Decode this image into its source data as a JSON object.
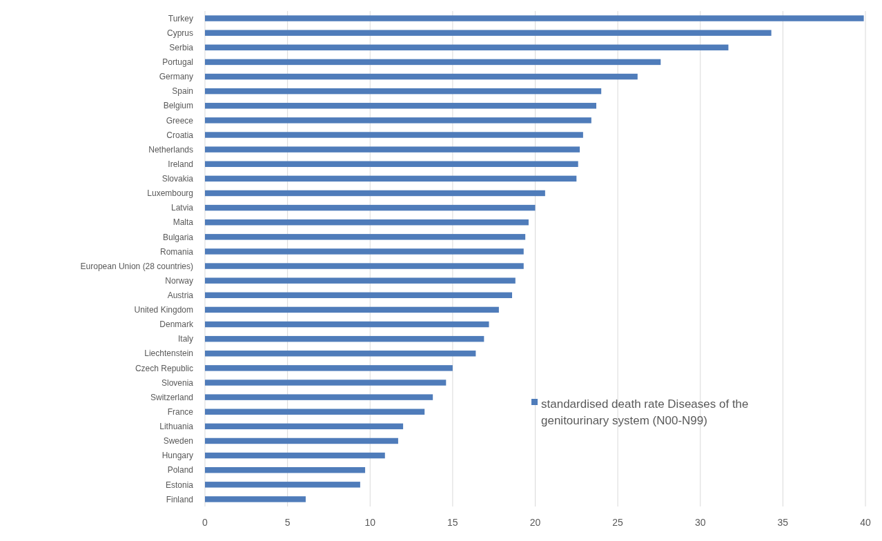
{
  "chart_data": {
    "type": "bar",
    "orientation": "horizontal",
    "categories": [
      "Turkey",
      "Cyprus",
      "Serbia",
      "Portugal",
      "Germany",
      "Spain",
      "Belgium",
      "Greece",
      "Croatia",
      "Netherlands",
      "Ireland",
      "Slovakia",
      "Luxembourg",
      "Latvia",
      "Malta",
      "Bulgaria",
      "Romania",
      "European Union (28 countries)",
      "Norway",
      "Austria",
      "United Kingdom",
      "Denmark",
      "Italy",
      "Liechtenstein",
      "Czech Republic",
      "Slovenia",
      "Switzerland",
      "France",
      "Lithuania",
      "Sweden",
      "Hungary",
      "Poland",
      "Estonia",
      "Finland"
    ],
    "series": [
      {
        "name": "standardised death rate Diseases of the genitourinary system (N00-N99)",
        "color": "#4f7cba",
        "values": [
          39.9,
          34.3,
          31.7,
          27.6,
          26.2,
          24.0,
          23.7,
          23.4,
          22.9,
          22.7,
          22.6,
          22.5,
          20.6,
          20.0,
          19.6,
          19.4,
          19.3,
          19.3,
          18.8,
          18.6,
          17.8,
          17.2,
          16.9,
          16.4,
          15.0,
          14.6,
          13.8,
          13.3,
          12.0,
          11.7,
          10.9,
          9.7,
          9.4,
          6.1
        ]
      }
    ],
    "xlim": [
      0,
      40
    ],
    "xticks": [
      0,
      5,
      10,
      15,
      20,
      25,
      30,
      35,
      40
    ],
    "grid": "x",
    "legend": "right"
  }
}
